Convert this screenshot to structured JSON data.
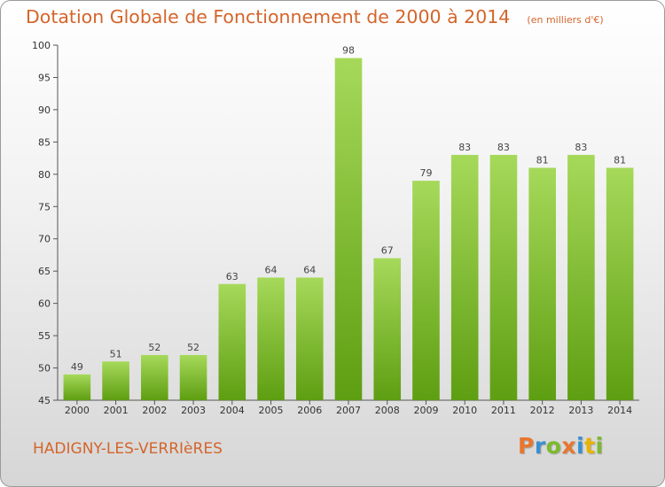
{
  "chart_data": {
    "type": "bar",
    "title": "Dotation Globale de Fonctionnement de 2000 à 2014",
    "subtitle": "(en milliers d'€)",
    "xlabel": "",
    "ylabel": "",
    "categories": [
      "2000",
      "2001",
      "2002",
      "2003",
      "2004",
      "2005",
      "2006",
      "2007",
      "2008",
      "2009",
      "2010",
      "2011",
      "2012",
      "2013",
      "2014"
    ],
    "values": [
      49,
      51,
      52,
      52,
      63,
      64,
      64,
      98,
      67,
      79,
      83,
      83,
      81,
      83,
      81
    ],
    "ylim": [
      45,
      100
    ],
    "yticks": [
      45,
      50,
      55,
      60,
      65,
      70,
      75,
      80,
      85,
      90,
      95,
      100
    ],
    "grid": false,
    "legend": "none",
    "colors": {
      "bar_light": "#a6d95a",
      "bar_dark": "#5e9e12",
      "title": "#d4652b"
    }
  },
  "place_name": "HADIGNY-LES-VERRIèRES",
  "logo": {
    "letters": [
      "P",
      "r",
      "o",
      "x",
      "i",
      "t",
      "i"
    ],
    "colors": [
      "#e8772e",
      "#3a8fd1",
      "#7cbb2c",
      "#e8772e",
      "#3a8fd1",
      "#e8b400",
      "#7cbb2c"
    ]
  }
}
